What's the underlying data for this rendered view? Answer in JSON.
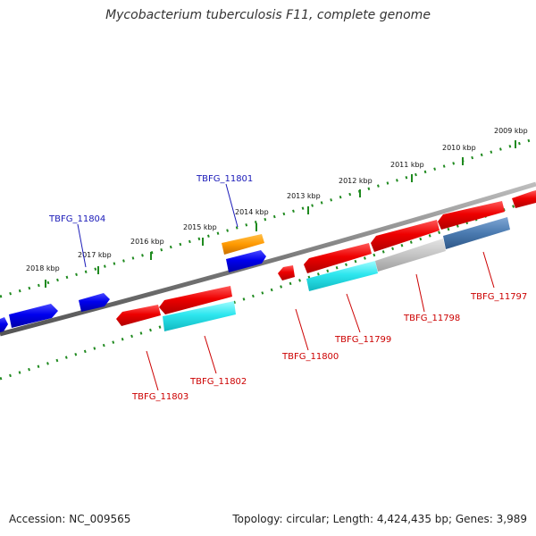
{
  "title": "Mycobacterium tuberculosis F11, complete genome",
  "footer": {
    "accession": "Accession: NC_009565",
    "summary": "Topology: circular; Length: 4,424,435 bp; Genes: 3,989"
  },
  "colors": {
    "backbone": "#7f7f7f",
    "tick": "#1f8a1f",
    "forward_label": "#1a1ab8",
    "reverse_label": "#cc0000"
  },
  "scale_labels": [
    "2009 kbp",
    "2010 kbp",
    "2011 kbp",
    "2012 kbp",
    "2013 kbp",
    "2014 kbp",
    "2015 kbp",
    "2016 kbp",
    "2017 kbp",
    "2018 kbp"
  ],
  "gene_labels": {
    "forward": [
      "TBFG_11801",
      "TBFG_11804"
    ],
    "reverse": [
      "TBFG_11797",
      "TBFG_11798",
      "TBFG_11799",
      "TBFG_11800",
      "TBFG_11802",
      "TBFG_11803"
    ]
  }
}
